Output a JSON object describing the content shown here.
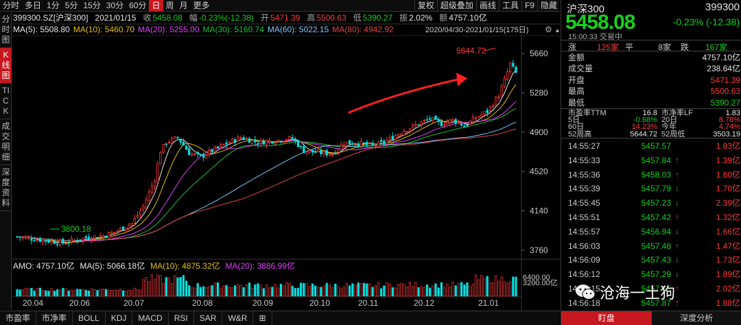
{
  "toolbar": {
    "timeframes": [
      "分时",
      "多日",
      "1分",
      "5分",
      "15分",
      "30分",
      "60分",
      "日",
      "周",
      "月",
      "更多"
    ],
    "active_index": 7,
    "tools": [
      "复权",
      "超级叠加",
      "画线",
      "工具",
      "F9",
      "隐藏"
    ]
  },
  "leftnav": [
    "分时图",
    "K线图",
    "TICK",
    "成交明细",
    "深度资料"
  ],
  "leftnav_active": 1,
  "info_row": {
    "code": "399300.SZ[沪深300]",
    "date": "2021/01/15",
    "close_label": "收",
    "close": "5458.08",
    "change_label": "幅",
    "change": "-0.23%(-12.38)",
    "open_label": "开",
    "open": "5471.39",
    "high_label": "高",
    "high": "5500.63",
    "low_label": "低",
    "low": "5390.27",
    "amp_label": "振",
    "amp": "2.02%",
    "amount_label": "额",
    "amount": "4757.10亿"
  },
  "ma_row": [
    {
      "label": "MA(5): 5508.80",
      "color": "#e8e8e8"
    },
    {
      "label": "MA(10): 5460.70",
      "color": "#e6c200"
    },
    {
      "label": "MA(20): 5255.00",
      "color": "#e040fb"
    },
    {
      "label": "MA(30): 5160.74",
      "color": "#1bc43a"
    },
    {
      "label": "MA(60): 5022.15",
      "color": "#7ec8ff"
    },
    {
      "label": "MA(80): 4942.92",
      "color": "#e04848"
    }
  ],
  "range_label": "2020/04/30-2021/01/15(175日)",
  "vol_row": [
    {
      "label": "AMO: 4757.10亿",
      "color": "#e8e8e8"
    },
    {
      "label": "MA(5): 5066.18亿",
      "color": "#e8e8e8"
    },
    {
      "label": "MA(10): 4875.32亿",
      "color": "#e6c200"
    },
    {
      "label": "MA(20): 3886.99亿",
      "color": "#e040fb"
    }
  ],
  "bottom_tabs": [
    "市盈率",
    "市净率",
    "BOLL",
    "KDJ",
    "MACD",
    "RSI",
    "SAR",
    "W&R",
    "⊞"
  ],
  "watermark": "沧海一土狗",
  "chart_data": {
    "type": "candlestick",
    "price_axis_ticks": [
      "5660",
      "5280",
      "4900",
      "4520",
      "4140",
      "3760"
    ],
    "ylim": [
      3620,
      5740
    ],
    "x_labels": [
      "20.04",
      "20.06",
      "20.07",
      "20.08",
      "20.09",
      "20.10",
      "20.11",
      "20.12",
      "21.01"
    ],
    "annotations": {
      "high": "5644.72",
      "low": "3800.18"
    },
    "volume_axis_ticks": [
      "6400.00",
      "3200.00亿"
    ],
    "volume_ylim": [
      0,
      6400
    ],
    "anchors": [
      {
        "d": 0,
        "p": 3890
      },
      {
        "d": 8,
        "p": 3860
      },
      {
        "d": 16,
        "p": 3830
      },
      {
        "d": 24,
        "p": 3880
      },
      {
        "d": 30,
        "p": 3900
      },
      {
        "d": 34,
        "p": 3935
      },
      {
        "d": 40,
        "p": 4020
      },
      {
        "d": 44,
        "p": 4180
      },
      {
        "d": 48,
        "p": 4450
      },
      {
        "d": 50,
        "p": 4720
      },
      {
        "d": 52,
        "p": 4800
      },
      {
        "d": 56,
        "p": 4850
      },
      {
        "d": 60,
        "p": 4700
      },
      {
        "d": 64,
        "p": 4660
      },
      {
        "d": 68,
        "p": 4720
      },
      {
        "d": 72,
        "p": 4780
      },
      {
        "d": 78,
        "p": 4850
      },
      {
        "d": 84,
        "p": 4800
      },
      {
        "d": 90,
        "p": 4820
      },
      {
        "d": 96,
        "p": 4840
      },
      {
        "d": 100,
        "p": 4720
      },
      {
        "d": 106,
        "p": 4700
      },
      {
        "d": 110,
        "p": 4690
      },
      {
        "d": 114,
        "p": 4800
      },
      {
        "d": 120,
        "p": 4790
      },
      {
        "d": 124,
        "p": 4770
      },
      {
        "d": 128,
        "p": 4800
      },
      {
        "d": 132,
        "p": 4870
      },
      {
        "d": 136,
        "p": 4930
      },
      {
        "d": 140,
        "p": 4980
      },
      {
        "d": 144,
        "p": 5030
      },
      {
        "d": 148,
        "p": 4980
      },
      {
        "d": 152,
        "p": 5020
      },
      {
        "d": 156,
        "p": 4960
      },
      {
        "d": 160,
        "p": 5040
      },
      {
        "d": 164,
        "p": 5100
      },
      {
        "d": 168,
        "p": 5260
      },
      {
        "d": 170,
        "p": 5400
      },
      {
        "d": 172,
        "p": 5560
      },
      {
        "d": 174,
        "p": 5470
      }
    ]
  },
  "panel": {
    "name": "沪深300",
    "code": "399300",
    "price": "5458.08",
    "change": "-0.23%",
    "change_abs": "(-12.38)",
    "time": "15:00:33",
    "status": "交易中",
    "breadth": {
      "up_label": "涨",
      "up": "125家",
      "flat_label": "平",
      "flat": "8家",
      "down_label": "跌",
      "down": "167家"
    },
    "stats": [
      {
        "k": "金额",
        "v": "4757.10亿"
      },
      {
        "k": "成交量",
        "v": "238.64亿"
      },
      {
        "k": "开盘",
        "v": "5471.39"
      },
      {
        "k": "最高",
        "v": "5500.63"
      },
      {
        "k": "最低",
        "v": "5390.27"
      }
    ],
    "valuation": [
      {
        "k": "市盈率TTM",
        "v": "16.8",
        "k2": "市净率LF",
        "v2": "1.83"
      },
      {
        "k": "5日",
        "v": "-0.68%",
        "k2": "20日",
        "v2": "8.78%"
      },
      {
        "k": "60日",
        "v": "14.23%",
        "k2": "今年",
        "v2": "4.74%"
      },
      {
        "k": "52周高",
        "v": "5644.72",
        "k2": "52周低",
        "v2": "3503.19"
      }
    ],
    "ticks": [
      {
        "time": "14:55:27",
        "price": "5457.57",
        "arrow": "",
        "chg": "1.83亿"
      },
      {
        "time": "14:55:33",
        "price": "5457.84",
        "arrow": "↑",
        "chg": "1.39亿"
      },
      {
        "time": "14:55:36",
        "price": "5458.03",
        "arrow": "↑",
        "chg": "1.60亿"
      },
      {
        "time": "14:55:39",
        "price": "5457.79",
        "arrow": "↓",
        "chg": "1.70亿"
      },
      {
        "time": "14:55:45",
        "price": "5457.23",
        "arrow": "↓",
        "chg": "2.39亿"
      },
      {
        "time": "14:55:51",
        "price": "5457.42",
        "arrow": "↑",
        "chg": "1.32亿"
      },
      {
        "time": "14:55:57",
        "price": "5456.94",
        "arrow": "↓",
        "chg": "1.66亿"
      },
      {
        "time": "14:56:03",
        "price": "5457.48",
        "arrow": "↑",
        "chg": "1.47亿"
      },
      {
        "time": "14:56:09",
        "price": "5457.43",
        "arrow": "↓",
        "chg": "1.73亿"
      },
      {
        "time": "14:56:12",
        "price": "5457.29",
        "arrow": "↓",
        "chg": "1.89亿"
      },
      {
        "time": "14:56:15",
        "price": "5457.65",
        "arrow": "↑",
        "chg": "2.02亿"
      },
      {
        "time": "14:56:18",
        "price": "5457.87",
        "arrow": "↑",
        "chg": "1.88亿"
      }
    ],
    "tabs": [
      "盯盘",
      "深度分析"
    ]
  }
}
